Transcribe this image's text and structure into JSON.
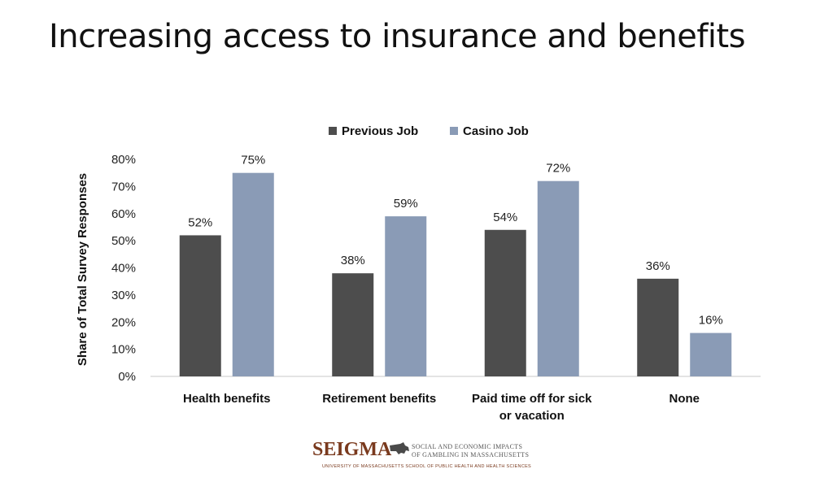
{
  "slide": {
    "title": "Increasing access to insurance and benefits"
  },
  "footer": {
    "brand": "SEIGMA",
    "line1": "SOCIAL AND ECONOMIC IMPACTS",
    "line2": "OF GAMBLING IN MASSACHUSETTS",
    "sub": "UNIVERSITY OF MASSACHUSETTS SCHOOL OF PUBLIC HEALTH AND HEALTH SCIENCES"
  },
  "colors": {
    "previous": "#4d4d4d",
    "casino": "#8a9bb6",
    "footer_brand": "#7a3a1e"
  },
  "chart_data": {
    "type": "bar",
    "ylabel": "Share of Total Survey Responses",
    "xlabel": "",
    "ylim": [
      0,
      80
    ],
    "y_ticks": [
      "0%",
      "10%",
      "20%",
      "30%",
      "40%",
      "50%",
      "60%",
      "70%",
      "80%"
    ],
    "y_tick_values": [
      0,
      10,
      20,
      30,
      40,
      50,
      60,
      70,
      80
    ],
    "legend_position": "top",
    "grid": false,
    "categories": [
      [
        "Health benefits"
      ],
      [
        "Retirement benefits"
      ],
      [
        "Paid time off for sick",
        "or vacation"
      ],
      [
        "None"
      ]
    ],
    "series": [
      {
        "name": "Previous Job",
        "values": [
          52,
          38,
          54,
          36
        ],
        "labels": [
          "52%",
          "38%",
          "54%",
          "36%"
        ]
      },
      {
        "name": "Casino Job",
        "values": [
          75,
          59,
          72,
          16
        ],
        "labels": [
          "75%",
          "59%",
          "72%",
          "16%"
        ]
      }
    ]
  }
}
